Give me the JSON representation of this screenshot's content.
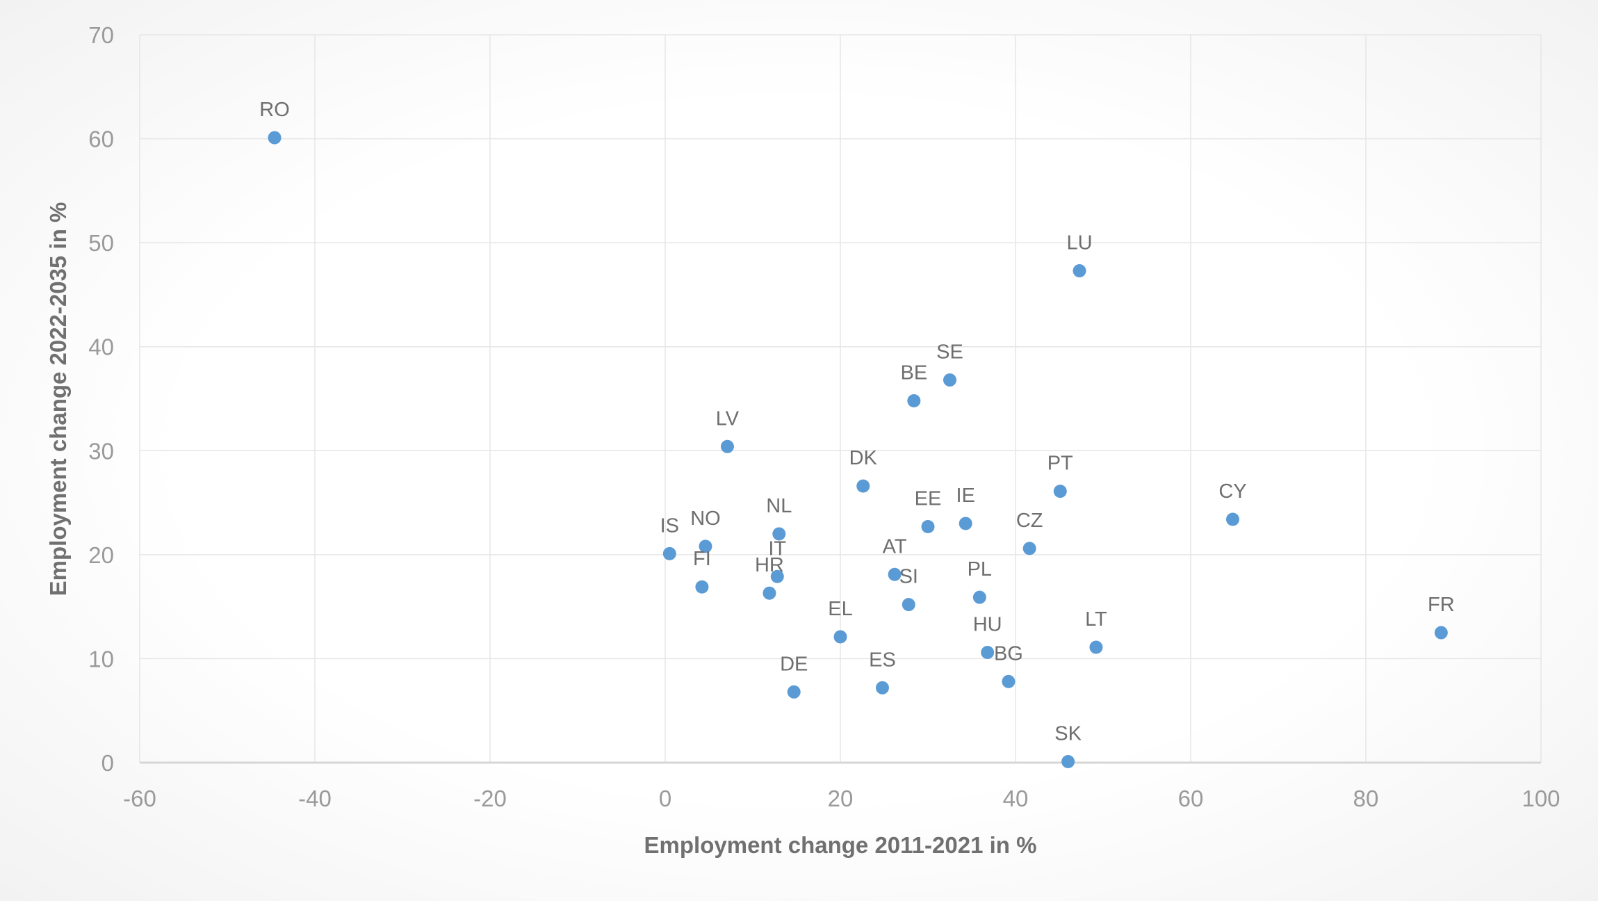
{
  "chart_data": {
    "type": "scatter",
    "title": "",
    "xlabel": "Employment change 2011-2021 in %",
    "ylabel": "Employment change 2022-2035 in %",
    "xlim": [
      -60,
      100
    ],
    "ylim": [
      0,
      70
    ],
    "xticks": [
      -60,
      -40,
      -20,
      0,
      20,
      40,
      60,
      80,
      100
    ],
    "yticks": [
      0,
      10,
      20,
      30,
      40,
      50,
      60,
      70
    ],
    "grid": true,
    "marker_color": "#5b9bd5",
    "points": [
      {
        "label": "RO",
        "x": -44.6,
        "y": 60.1
      },
      {
        "label": "LU",
        "x": 47.3,
        "y": 47.3
      },
      {
        "label": "SE",
        "x": 32.5,
        "y": 36.8
      },
      {
        "label": "BE",
        "x": 28.4,
        "y": 34.8
      },
      {
        "label": "LV",
        "x": 7.1,
        "y": 30.4
      },
      {
        "label": "DK",
        "x": 22.6,
        "y": 26.6
      },
      {
        "label": "PT",
        "x": 45.1,
        "y": 26.1
      },
      {
        "label": "CY",
        "x": 64.8,
        "y": 23.4
      },
      {
        "label": "EE",
        "x": 30.0,
        "y": 22.7
      },
      {
        "label": "IE",
        "x": 34.3,
        "y": 23.0
      },
      {
        "label": "NL",
        "x": 13.0,
        "y": 22.0
      },
      {
        "label": "CZ",
        "x": 41.6,
        "y": 20.6
      },
      {
        "label": "NO",
        "x": 4.6,
        "y": 20.8
      },
      {
        "label": "IS",
        "x": 0.5,
        "y": 20.1
      },
      {
        "label": "IT",
        "x": 12.8,
        "y": 17.9
      },
      {
        "label": "AT",
        "x": 26.2,
        "y": 18.1
      },
      {
        "label": "FI",
        "x": 4.2,
        "y": 16.9
      },
      {
        "label": "HR",
        "x": 11.9,
        "y": 16.3
      },
      {
        "label": "PL",
        "x": 35.9,
        "y": 15.9
      },
      {
        "label": "SI",
        "x": 27.8,
        "y": 15.2
      },
      {
        "label": "FR",
        "x": 88.6,
        "y": 12.5
      },
      {
        "label": "LT",
        "x": 49.2,
        "y": 11.1
      },
      {
        "label": "EL",
        "x": 20.0,
        "y": 12.1
      },
      {
        "label": "HU",
        "x": 36.8,
        "y": 10.6
      },
      {
        "label": "BG",
        "x": 39.2,
        "y": 7.8
      },
      {
        "label": "ES",
        "x": 24.8,
        "y": 7.2
      },
      {
        "label": "DE",
        "x": 14.7,
        "y": 6.8
      },
      {
        "label": "SK",
        "x": 46.0,
        "y": 0.1
      }
    ]
  }
}
